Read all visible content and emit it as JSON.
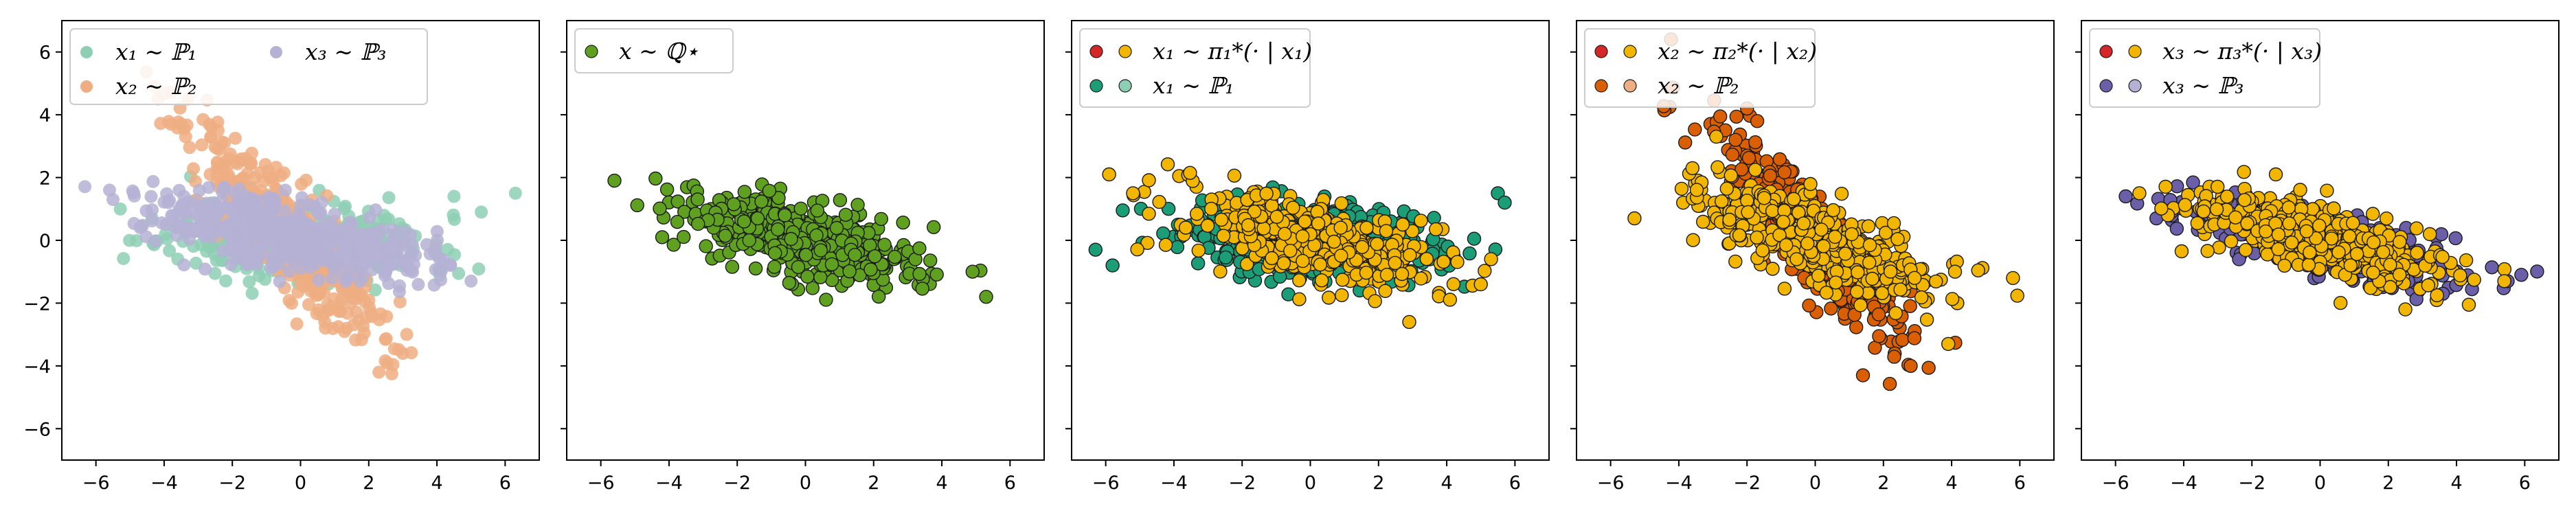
{
  "figure": {
    "xlim": [
      -7,
      7
    ],
    "ylim": [
      -7,
      7
    ],
    "xticks": [
      -6,
      -4,
      -2,
      0,
      2,
      4,
      6
    ],
    "yticks": [
      -6,
      -4,
      -2,
      0,
      2,
      4,
      6
    ],
    "tick_labels": [
      "−6",
      "−4",
      "−2",
      "0",
      "2",
      "4",
      "6"
    ]
  },
  "colors": {
    "p1": "#8ecfb4",
    "p2": "#efae82",
    "p3": "#b5b1d5",
    "q": "#5fa020",
    "pi1_x": "#d62728",
    "pi1_y": "#f2b500",
    "p1_dark": "#1b9e77",
    "p1_light": "#8ecfb4",
    "p2_dark": "#d95f02",
    "p2_light": "#efae82",
    "p3_dark": "#6a5fa8",
    "p3_light": "#b5b1d5"
  },
  "chart_data": [
    {
      "type": "scatter",
      "panel": 1,
      "xlim": [
        -7,
        7
      ],
      "ylim": [
        -7,
        7
      ],
      "legend_position": "upper-left",
      "legend": [
        {
          "label": "x₁ ∼ ℙ₁",
          "colors": [
            "#8ecfb4"
          ]
        },
        {
          "label": "x₂ ∼ ℙ₂",
          "colors": [
            "#efae82"
          ]
        },
        {
          "label": "x₃ ∼ ℙ₃",
          "colors": [
            "#b5b1d5"
          ]
        }
      ],
      "series": [
        {
          "name": "x₁ ∼ ℙ₁",
          "color": "#8ecfb4",
          "n": 450,
          "mean": [
            0,
            0
          ],
          "sd": [
            1.9,
            0.6
          ],
          "angle": -5,
          "seed": 11,
          "extra": [
            [
              6.3,
              1.5
            ],
            [
              5.3,
              0.9
            ],
            [
              -3.6,
              -0.6
            ],
            [
              4.5,
              1.4
            ]
          ]
        },
        {
          "name": "x₂ ∼ ℙ₂",
          "color": "#efae82",
          "n": 420,
          "mean": [
            -0.5,
            0.3
          ],
          "sd": [
            2.2,
            0.55
          ],
          "angle": -52,
          "seed": 23,
          "extra": [
            [
              -3.3,
              4.5
            ],
            [
              -3.8,
              3.7
            ],
            [
              2.3,
              -4.2
            ],
            [
              3.0,
              -3.6
            ]
          ]
        },
        {
          "name": "x₃ ∼ ℙ₃",
          "color": "#b5b1d5",
          "n": 480,
          "mean": [
            -0.3,
            0.2
          ],
          "sd": [
            2.0,
            0.55
          ],
          "angle": -12,
          "seed": 37,
          "extra": [
            [
              -5.6,
              1.6
            ],
            [
              -5.5,
              1.3
            ],
            [
              5.0,
              -1.3
            ],
            [
              4.4,
              -0.8
            ]
          ]
        }
      ]
    },
    {
      "type": "scatter",
      "panel": 2,
      "xlim": [
        -7,
        7
      ],
      "ylim": [
        -7,
        7
      ],
      "legend_position": "upper-left",
      "legend": [
        {
          "label": "x ∼ ℚ⋆",
          "colors": [
            "#5fa020"
          ]
        }
      ],
      "series": [
        {
          "name": "x ∼ ℚ⋆",
          "color": "#5fa020",
          "n": 470,
          "mean": [
            0,
            0
          ],
          "sd": [
            1.9,
            0.55
          ],
          "angle": -16,
          "seed": 53,
          "extra": [
            [
              -5.6,
              1.9
            ],
            [
              5.3,
              -1.8
            ],
            [
              4.9,
              -1.0
            ],
            [
              -4.2,
              0.1
            ]
          ]
        }
      ]
    },
    {
      "type": "scatter",
      "panel": 3,
      "xlim": [
        -7,
        7
      ],
      "ylim": [
        -7,
        7
      ],
      "legend_position": "upper-left",
      "legend": [
        {
          "label": "x₁ ∼ π₁*(· | x₁)",
          "colors": [
            "#d62728",
            "#f2b500"
          ]
        },
        {
          "label": "x₁ ∼ ℙ₁",
          "colors": [
            "#1b9e77",
            "#8ecfb4"
          ]
        }
      ],
      "series": [
        {
          "name": "x₁ ∼ ℙ₁",
          "color": "#1b9e77",
          "n": 380,
          "mean": [
            0.2,
            0
          ],
          "sd": [
            2.0,
            0.6
          ],
          "angle": -4,
          "seed": 61,
          "extra": [
            [
              5.5,
              1.5
            ],
            [
              5.7,
              1.2
            ],
            [
              -6.3,
              -0.3
            ],
            [
              -5.8,
              -0.8
            ]
          ]
        },
        {
          "name": "x₁ ∼ π₁*(· | x₁)",
          "color": "#f2b500",
          "n": 430,
          "mean": [
            0,
            0
          ],
          "sd": [
            1.9,
            0.6
          ],
          "angle": -15,
          "seed": 71,
          "extra": [
            [
              -5.9,
              2.1
            ],
            [
              -5.2,
              1.5
            ],
            [
              5.0,
              -1.4
            ],
            [
              5.3,
              -0.6
            ],
            [
              2.9,
              -2.6
            ]
          ]
        }
      ]
    },
    {
      "type": "scatter",
      "panel": 4,
      "xlim": [
        -7,
        7
      ],
      "ylim": [
        -7,
        7
      ],
      "legend_position": "upper-left",
      "legend": [
        {
          "label": "x₂ ∼ π₂*(· | x₂)",
          "colors": [
            "#d62728",
            "#f2b500"
          ]
        },
        {
          "label": "x₂ ∼ ℙ₂",
          "colors": [
            "#d95f02",
            "#efae82"
          ]
        }
      ],
      "series": [
        {
          "name": "x₂ ∼ ℙ₂",
          "color": "#d95f02",
          "n": 380,
          "mean": [
            -0.2,
            0.2
          ],
          "sd": [
            2.2,
            0.5
          ],
          "angle": -52,
          "seed": 83,
          "extra": [
            [
              -2.0,
              4.2
            ],
            [
              -1.7,
              3.8
            ],
            [
              2.8,
              -4.0
            ],
            [
              1.4,
              -4.3
            ]
          ]
        },
        {
          "name": "x₂ ∼ π₂*(· | x₂)",
          "color": "#f2b500",
          "n": 440,
          "mean": [
            0,
            0
          ],
          "sd": [
            2.0,
            0.6
          ],
          "angle": -24,
          "seed": 97,
          "extra": [
            [
              -5.3,
              0.7
            ],
            [
              -3.6,
              2.3
            ],
            [
              5.8,
              -1.2
            ],
            [
              4.1,
              -1.0
            ],
            [
              -2.9,
              3.3
            ]
          ]
        }
      ]
    },
    {
      "type": "scatter",
      "panel": 5,
      "xlim": [
        -7,
        7
      ],
      "ylim": [
        -7,
        7
      ],
      "legend_position": "upper-left",
      "legend": [
        {
          "label": "x₃ ∼ π₃*(· | x₃)",
          "colors": [
            "#d62728",
            "#f2b500"
          ]
        },
        {
          "label": "x₃ ∼ ℙ₃",
          "colors": [
            "#6a5fa8",
            "#b5b1d5"
          ]
        }
      ],
      "series": [
        {
          "name": "x₃ ∼ ℙ₃",
          "color": "#6a5fa8",
          "n": 400,
          "mean": [
            0,
            0
          ],
          "sd": [
            2.0,
            0.45
          ],
          "angle": -14,
          "seed": 101,
          "extra": [
            [
              -5.7,
              1.4
            ],
            [
              5.9,
              -1.1
            ],
            [
              5.5,
              -1.3
            ],
            [
              -4.8,
              0.7
            ]
          ]
        },
        {
          "name": "x₃ ∼ π₃*(· | x₃)",
          "color": "#f2b500",
          "n": 440,
          "mean": [
            0,
            0
          ],
          "sd": [
            1.9,
            0.5
          ],
          "angle": -16,
          "seed": 113,
          "extra": [
            [
              -5.3,
              1.5
            ],
            [
              5.4,
              -1.3
            ],
            [
              2.5,
              -2.2
            ],
            [
              -1.3,
              2.1
            ]
          ]
        }
      ]
    }
  ]
}
